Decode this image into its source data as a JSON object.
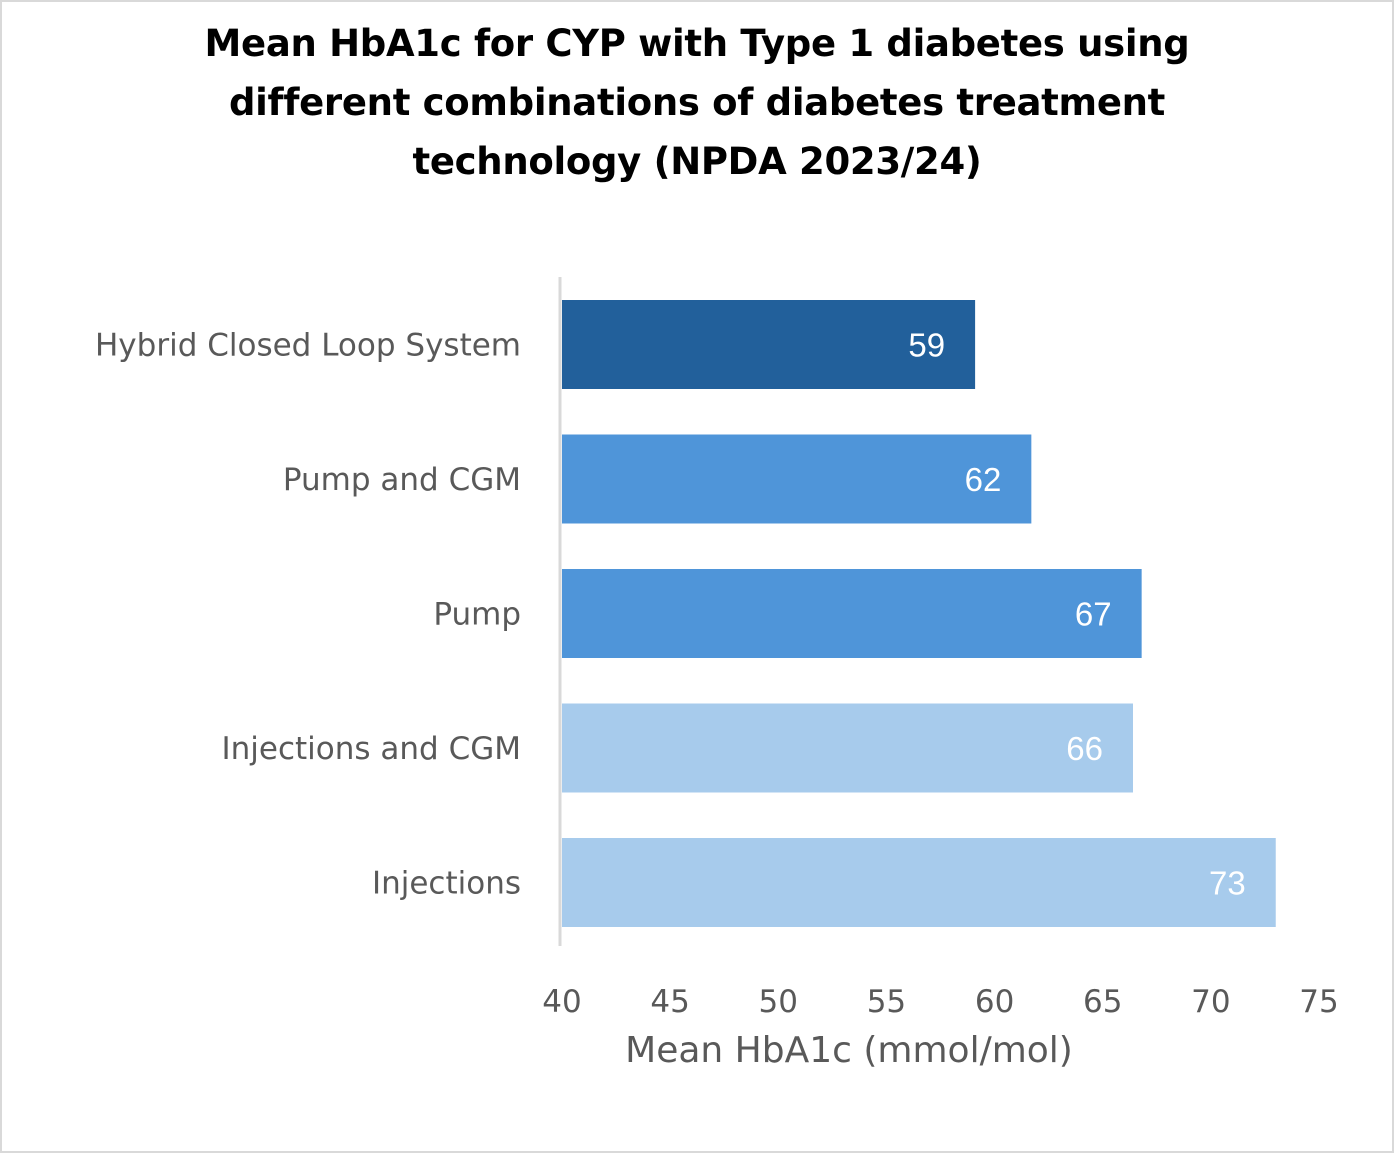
{
  "chart_data": {
    "type": "bar",
    "orientation": "horizontal",
    "title": "Mean HbA1c for CYP with Type 1 diabetes using different combinations of diabetes treatment technology (NPDA 2023/24)",
    "title_lines": [
      "Mean HbA1c for CYP with Type 1 diabetes using",
      "different combinations of diabetes treatment",
      "technology (NPDA 2023/24)"
    ],
    "xlabel": "Mean HbA1c (mmol/mol)",
    "ylabel": "",
    "xlim": [
      40,
      75
    ],
    "xticks": [
      40,
      45,
      50,
      55,
      60,
      65,
      70,
      75
    ],
    "grid": false,
    "legend": "none",
    "categories": [
      "Hybrid Closed Loop System",
      "Pump and CGM",
      "Pump",
      "Injections and CGM",
      "Injections"
    ],
    "values": [
      59.1,
      61.7,
      66.8,
      66.4,
      73.0
    ],
    "data_labels": [
      "59",
      "62",
      "67",
      "66",
      "73"
    ],
    "colors": [
      "#22609b",
      "#4f95d9",
      "#4f95d9",
      "#a7cbec",
      "#a7cbec"
    ]
  }
}
